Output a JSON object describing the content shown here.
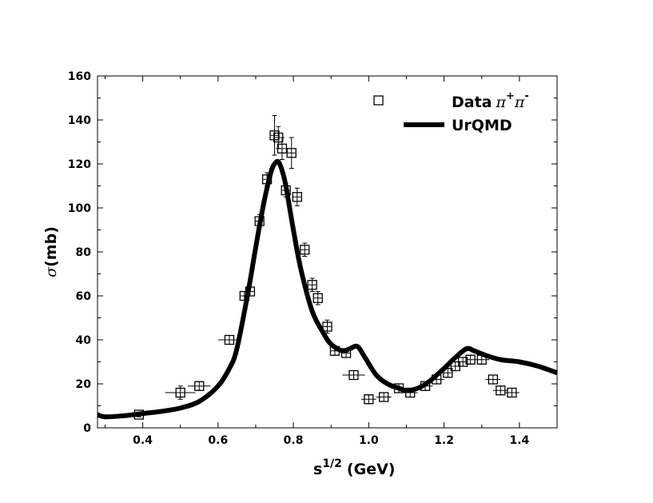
{
  "chart_data": {
    "type": "scatter",
    "title": "",
    "xlabel_base": "s",
    "xlabel_exponent": "1/2",
    "xlabel_unit": "(GeV)",
    "ylabel_symbol": "σ",
    "ylabel_unit": "(mb)",
    "xlim": [
      0.28,
      1.5
    ],
    "ylim": [
      0,
      160
    ],
    "xticks": [
      0.4,
      0.6,
      0.8,
      1.0,
      1.2,
      1.4
    ],
    "xtick_labels": [
      "0.4",
      "0.6",
      "0.8",
      "1.0",
      "1.2",
      "1.4"
    ],
    "yticks": [
      0,
      20,
      40,
      60,
      80,
      100,
      120,
      140,
      160
    ],
    "ytick_labels": [
      "0",
      "20",
      "40",
      "60",
      "80",
      "100",
      "120",
      "140",
      "160"
    ],
    "legend_position": "top-right",
    "series": [
      {
        "name": "Data",
        "legend_label": "Data",
        "legend_symbol": "π",
        "legend_sup1": "+",
        "legend_sup2": "-",
        "marker": "open-square",
        "points": [
          {
            "x": 0.39,
            "y": 6,
            "xerr": 0.01,
            "yerr": 1
          },
          {
            "x": 0.5,
            "y": 16,
            "xerr": 0.04,
            "yerr": 3
          },
          {
            "x": 0.55,
            "y": 19,
            "xerr": 0.03,
            "yerr": 2
          },
          {
            "x": 0.63,
            "y": 40,
            "xerr": 0.03,
            "yerr": 2
          },
          {
            "x": 0.67,
            "y": 60,
            "xerr": 0.01,
            "yerr": 2
          },
          {
            "x": 0.685,
            "y": 62,
            "xerr": 0.01,
            "yerr": 2
          },
          {
            "x": 0.71,
            "y": 94,
            "xerr": 0.01,
            "yerr": 3
          },
          {
            "x": 0.73,
            "y": 113,
            "xerr": 0.01,
            "yerr": 3
          },
          {
            "x": 0.75,
            "y": 133,
            "xerr": 0.01,
            "yerr": 9
          },
          {
            "x": 0.76,
            "y": 132,
            "xerr": 0.01,
            "yerr": 5
          },
          {
            "x": 0.77,
            "y": 127,
            "xerr": 0.01,
            "yerr": 5
          },
          {
            "x": 0.78,
            "y": 108,
            "xerr": 0.01,
            "yerr": 3
          },
          {
            "x": 0.795,
            "y": 125,
            "xerr": 0.01,
            "yerr": 7
          },
          {
            "x": 0.81,
            "y": 105,
            "xerr": 0.01,
            "yerr": 4
          },
          {
            "x": 0.83,
            "y": 81,
            "xerr": 0.01,
            "yerr": 3
          },
          {
            "x": 0.85,
            "y": 65,
            "xerr": 0.01,
            "yerr": 3
          },
          {
            "x": 0.865,
            "y": 59,
            "xerr": 0.01,
            "yerr": 3
          },
          {
            "x": 0.89,
            "y": 46,
            "xerr": 0.01,
            "yerr": 3
          },
          {
            "x": 0.91,
            "y": 35,
            "xerr": 0.01,
            "yerr": 2
          },
          {
            "x": 0.94,
            "y": 34,
            "xerr": 0.01,
            "yerr": 2
          },
          {
            "x": 0.96,
            "y": 24,
            "xerr": 0.03,
            "yerr": 2
          },
          {
            "x": 1.0,
            "y": 13,
            "xerr": 0.02,
            "yerr": 2
          },
          {
            "x": 1.04,
            "y": 14,
            "xerr": 0.02,
            "yerr": 2
          },
          {
            "x": 1.08,
            "y": 18,
            "xerr": 0.02,
            "yerr": 2
          },
          {
            "x": 1.11,
            "y": 16,
            "xerr": 0.02,
            "yerr": 2
          },
          {
            "x": 1.15,
            "y": 19,
            "xerr": 0.02,
            "yerr": 2
          },
          {
            "x": 1.18,
            "y": 22,
            "xerr": 0.02,
            "yerr": 2
          },
          {
            "x": 1.21,
            "y": 25,
            "xerr": 0.01,
            "yerr": 2
          },
          {
            "x": 1.23,
            "y": 28,
            "xerr": 0.01,
            "yerr": 2
          },
          {
            "x": 1.25,
            "y": 30,
            "xerr": 0.01,
            "yerr": 2
          },
          {
            "x": 1.27,
            "y": 31,
            "xerr": 0.01,
            "yerr": 2
          },
          {
            "x": 1.3,
            "y": 31,
            "xerr": 0.02,
            "yerr": 2
          },
          {
            "x": 1.33,
            "y": 22,
            "xerr": 0.02,
            "yerr": 2
          },
          {
            "x": 1.35,
            "y": 17,
            "xerr": 0.02,
            "yerr": 2
          },
          {
            "x": 1.38,
            "y": 16,
            "xerr": 0.02,
            "yerr": 2
          }
        ]
      },
      {
        "name": "UrQMD",
        "legend_label": "UrQMD",
        "style": "thick-line",
        "x": [
          0.28,
          0.3,
          0.35,
          0.4,
          0.45,
          0.5,
          0.55,
          0.6,
          0.63,
          0.65,
          0.68,
          0.7,
          0.72,
          0.74,
          0.75,
          0.76,
          0.77,
          0.78,
          0.8,
          0.82,
          0.85,
          0.88,
          0.9,
          0.93,
          0.95,
          0.97,
          0.99,
          1.02,
          1.05,
          1.08,
          1.1,
          1.13,
          1.16,
          1.2,
          1.23,
          1.26,
          1.28,
          1.31,
          1.35,
          1.4,
          1.45,
          1.5
        ],
        "y": [
          6,
          5,
          5.5,
          6.5,
          7.5,
          9,
          12,
          19,
          27,
          36,
          62,
          82,
          101,
          116,
          120,
          121,
          117,
          110,
          90,
          72,
          53,
          43,
          38,
          35,
          36,
          37,
          32,
          24,
          20,
          18,
          17,
          18,
          21,
          27,
          32,
          36,
          35,
          33,
          31,
          30,
          28,
          25
        ]
      }
    ]
  }
}
